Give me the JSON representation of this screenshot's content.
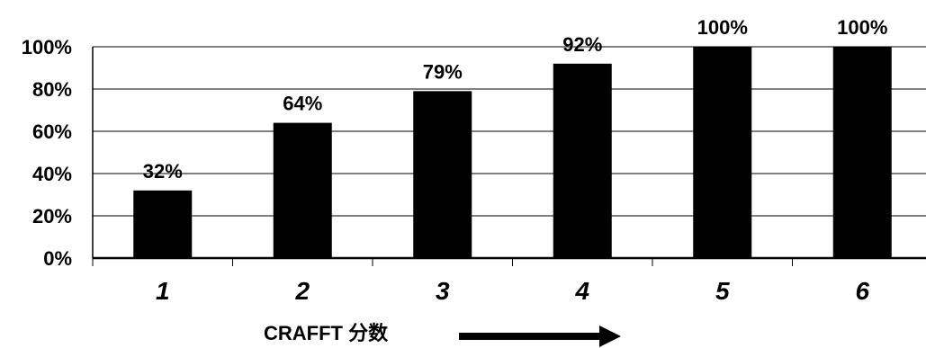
{
  "chart_data": {
    "type": "bar",
    "categories": [
      "1",
      "2",
      "3",
      "4",
      "5",
      "6"
    ],
    "values": [
      32,
      64,
      79,
      92,
      100,
      100
    ],
    "data_labels": [
      "32%",
      "64%",
      "79%",
      "92%",
      "100%",
      "100%"
    ],
    "ylim": [
      0,
      100
    ],
    "y_ticks": [
      0,
      20,
      40,
      60,
      80,
      100
    ],
    "y_tick_labels": [
      "0%",
      "20%",
      "40%",
      "60%",
      "80%",
      "100%"
    ],
    "xlabel": "CRAFFT 分数",
    "title": "",
    "grid": true,
    "bar_color": "#000000",
    "axis_annotation": "right-arrow"
  }
}
